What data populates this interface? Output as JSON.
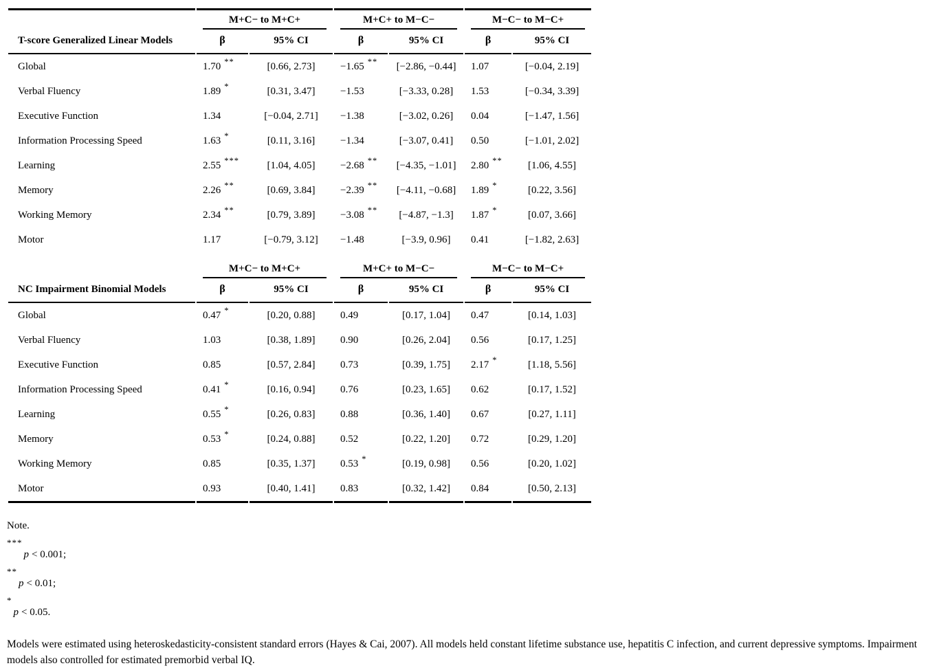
{
  "colors": {
    "text": "#000000",
    "background": "#ffffff",
    "rule": "#000000"
  },
  "spanners": [
    "M+C− to M+C+",
    "M+C+ to M−C−",
    "M−C− to M−C+"
  ],
  "col_headers": {
    "beta": "β",
    "ci": "95% CI"
  },
  "sections": [
    {
      "title": "T-score Generalized Linear Models",
      "rows": [
        {
          "label": "Global",
          "cells": [
            {
              "b": "1.70",
              "sig": "**",
              "ci": "[0.66, 2.73]"
            },
            {
              "b": "−1.65",
              "sig": "**",
              "ci": "[−2.86, −0.44]"
            },
            {
              "b": "1.07",
              "sig": "",
              "ci": "[−0.04, 2.19]"
            }
          ]
        },
        {
          "label": "Verbal Fluency",
          "cells": [
            {
              "b": "1.89",
              "sig": "*",
              "ci": "[0.31, 3.47]"
            },
            {
              "b": "−1.53",
              "sig": "",
              "ci": "[−3.33, 0.28]"
            },
            {
              "b": "1.53",
              "sig": "",
              "ci": "[−0.34, 3.39]"
            }
          ]
        },
        {
          "label": "Executive Function",
          "cells": [
            {
              "b": "1.34",
              "sig": "",
              "ci": "[−0.04, 2.71]"
            },
            {
              "b": "−1.38",
              "sig": "",
              "ci": "[−3.02, 0.26]"
            },
            {
              "b": "0.04",
              "sig": "",
              "ci": "[−1.47, 1.56]"
            }
          ]
        },
        {
          "label": "Information Processing Speed",
          "cells": [
            {
              "b": "1.63",
              "sig": "*",
              "ci": "[0.11, 3.16]"
            },
            {
              "b": "−1.34",
              "sig": "",
              "ci": "[−3.07, 0.41]"
            },
            {
              "b": "0.50",
              "sig": "",
              "ci": "[−1.01, 2.02]"
            }
          ]
        },
        {
          "label": "Learning",
          "cells": [
            {
              "b": "2.55",
              "sig": "***",
              "ci": "[1.04, 4.05]"
            },
            {
              "b": "−2.68",
              "sig": "**",
              "ci": "[−4.35, −1.01]"
            },
            {
              "b": "2.80",
              "sig": "**",
              "ci": "[1.06, 4.55]"
            }
          ]
        },
        {
          "label": "Memory",
          "cells": [
            {
              "b": "2.26",
              "sig": "**",
              "ci": "[0.69, 3.84]"
            },
            {
              "b": "−2.39",
              "sig": "**",
              "ci": "[−4.11, −0.68]"
            },
            {
              "b": "1.89",
              "sig": "*",
              "ci": "[0.22, 3.56]"
            }
          ]
        },
        {
          "label": "Working Memory",
          "cells": [
            {
              "b": "2.34",
              "sig": "**",
              "ci": "[0.79, 3.89]"
            },
            {
              "b": "−3.08",
              "sig": "**",
              "ci": "[−4.87, −1.3]"
            },
            {
              "b": "1.87",
              "sig": "*",
              "ci": "[0.07, 3.66]"
            }
          ]
        },
        {
          "label": "Motor",
          "cells": [
            {
              "b": "1.17",
              "sig": "",
              "ci": "[−0.79, 3.12]"
            },
            {
              "b": "−1.48",
              "sig": "",
              "ci": "[−3.9, 0.96]"
            },
            {
              "b": "0.41",
              "sig": "",
              "ci": "[−1.82, 2.63]"
            }
          ]
        }
      ]
    },
    {
      "title": "NC Impairment Binomial Models",
      "rows": [
        {
          "label": "Global",
          "cells": [
            {
              "b": "0.47",
              "sig": "*",
              "ci": "[0.20, 0.88]"
            },
            {
              "b": "0.49",
              "sig": "",
              "ci": "[0.17, 1.04]"
            },
            {
              "b": "0.47",
              "sig": "",
              "ci": "[0.14, 1.03]"
            }
          ]
        },
        {
          "label": "Verbal Fluency",
          "cells": [
            {
              "b": "1.03",
              "sig": "",
              "ci": "[0.38, 1.89]"
            },
            {
              "b": "0.90",
              "sig": "",
              "ci": "[0.26, 2.04]"
            },
            {
              "b": "0.56",
              "sig": "",
              "ci": "[0.17, 1.25]"
            }
          ]
        },
        {
          "label": "Executive Function",
          "cells": [
            {
              "b": "0.85",
              "sig": "",
              "ci": "[0.57, 2.84]"
            },
            {
              "b": "0.73",
              "sig": "",
              "ci": "[0.39, 1.75]"
            },
            {
              "b": "2.17",
              "sig": "*",
              "ci": "[1.18, 5.56]"
            }
          ]
        },
        {
          "label": "Information Processing Speed",
          "cells": [
            {
              "b": "0.41",
              "sig": "*",
              "ci": "[0.16, 0.94]"
            },
            {
              "b": "0.76",
              "sig": "",
              "ci": "[0.23, 1.65]"
            },
            {
              "b": "0.62",
              "sig": "",
              "ci": "[0.17, 1.52]"
            }
          ]
        },
        {
          "label": "Learning",
          "cells": [
            {
              "b": "0.55",
              "sig": "*",
              "ci": "[0.26, 0.83]"
            },
            {
              "b": "0.88",
              "sig": "",
              "ci": "[0.36, 1.40]"
            },
            {
              "b": "0.67",
              "sig": "",
              "ci": "[0.27, 1.11]"
            }
          ]
        },
        {
          "label": "Memory",
          "cells": [
            {
              "b": "0.53",
              "sig": "*",
              "ci": "[0.24, 0.88]"
            },
            {
              "b": "0.52",
              "sig": "",
              "ci": "[0.22, 1.20]"
            },
            {
              "b": "0.72",
              "sig": "",
              "ci": "[0.29, 1.20]"
            }
          ]
        },
        {
          "label": "Working Memory",
          "cells": [
            {
              "b": "0.85",
              "sig": "",
              "ci": "[0.35, 1.37]"
            },
            {
              "b": "0.53",
              "sig": "*",
              "ci": "[0.19, 0.98]"
            },
            {
              "b": "0.56",
              "sig": "",
              "ci": "[0.20, 1.02]"
            }
          ]
        },
        {
          "label": "Motor",
          "cells": [
            {
              "b": "0.93",
              "sig": "",
              "ci": "[0.40, 1.41]"
            },
            {
              "b": "0.83",
              "sig": "",
              "ci": "[0.32, 1.42]"
            },
            {
              "b": "0.84",
              "sig": "",
              "ci": "[0.50, 2.13]"
            }
          ]
        }
      ]
    }
  ],
  "notes": {
    "note_label": "Note.",
    "footnotes": [
      {
        "marker": "***",
        "var": "p",
        "text": "< 0.001;"
      },
      {
        "marker": "**",
        "var": "p",
        "text": "< 0.01;"
      },
      {
        "marker": "*",
        "var": "p",
        "text": "< 0.05."
      }
    ],
    "paragraph": "Models were estimated using heteroskedasticity-consistent standard errors (Hayes & Cai, 2007). All models held constant lifetime substance use, hepatitis C infection, and current depressive symptoms. Impairment models also controlled for estimated premorbid verbal IQ."
  }
}
